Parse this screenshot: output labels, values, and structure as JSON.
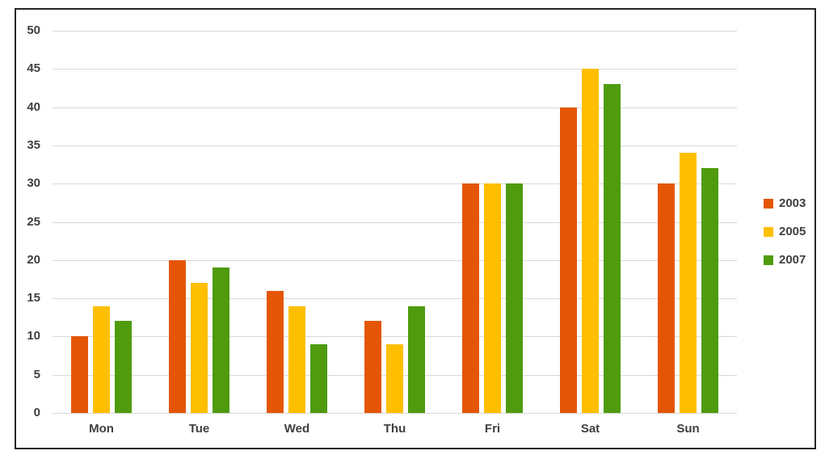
{
  "chart_data": {
    "type": "bar",
    "title": "",
    "xlabel": "",
    "ylabel": "",
    "categories": [
      "Mon",
      "Tue",
      "Wed",
      "Thu",
      "Fri",
      "Sat",
      "Sun"
    ],
    "series": [
      {
        "name": "2003",
        "color": "#e45606",
        "values": [
          10,
          20,
          16,
          12,
          30,
          40,
          30
        ]
      },
      {
        "name": "2005",
        "color": "#fdbf00",
        "values": [
          14,
          17,
          14,
          9,
          30,
          45,
          34
        ]
      },
      {
        "name": "2007",
        "color": "#4f9b0d",
        "values": [
          12,
          19,
          9,
          14,
          30,
          43,
          32
        ]
      }
    ],
    "ylim": [
      0,
      50
    ],
    "y_ticks": [
      0,
      5,
      10,
      15,
      20,
      25,
      30,
      35,
      40,
      45,
      50
    ],
    "grid": "horizontal",
    "legend_position": "right"
  },
  "styles": {
    "text_color": "#3f3f3f",
    "gridline_color": "#d9d9d9",
    "frame_border_color": "#262626",
    "background": "#ffffff"
  }
}
